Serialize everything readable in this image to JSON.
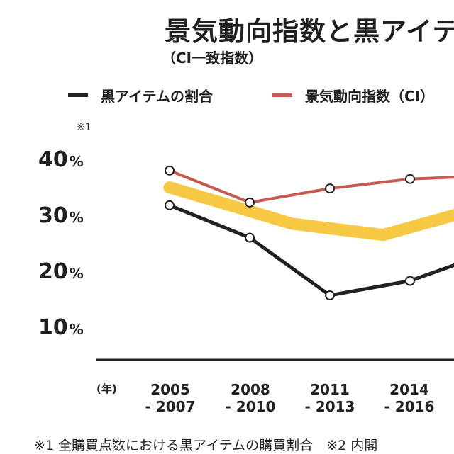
{
  "chart_data": {
    "type": "line",
    "title": "景気動向指数と黒アイテ",
    "subtitle": "（CI一致指数）",
    "xlabel": "(年)",
    "note_mark": "※1",
    "categories": [
      [
        "2005",
        "- 2007"
      ],
      [
        "2008",
        "- 2010"
      ],
      [
        "2011",
        "- 2013"
      ],
      [
        "2014",
        "- 2016"
      ],
      [
        "",
        ""
      ]
    ],
    "yticks": [
      {
        "value": 40,
        "label": "40",
        "unit": "%"
      },
      {
        "value": 30,
        "label": "30",
        "unit": "%"
      },
      {
        "value": 20,
        "label": "20",
        "unit": "%"
      },
      {
        "value": 10,
        "label": "10",
        "unit": "%"
      }
    ],
    "ylim": [
      5,
      45
    ],
    "legend_position": "top",
    "series": [
      {
        "name": "黒アイテムの割合",
        "color": "#222222",
        "values": [
          32.3,
          26.5,
          16.2,
          18.8,
          23.2
        ]
      },
      {
        "name": "景気動向指数（CI）",
        "color": "#c65a4f",
        "values": [
          38.5,
          32.8,
          35.3,
          37.0,
          37.5
        ]
      }
    ],
    "trend_band": {
      "color": "#f7c844",
      "values": [
        35.5,
        29.0,
        27.0,
        31.8
      ]
    },
    "footnote": "※1 全購買点数における黒アイテムの購買割合　※2 内閣"
  }
}
